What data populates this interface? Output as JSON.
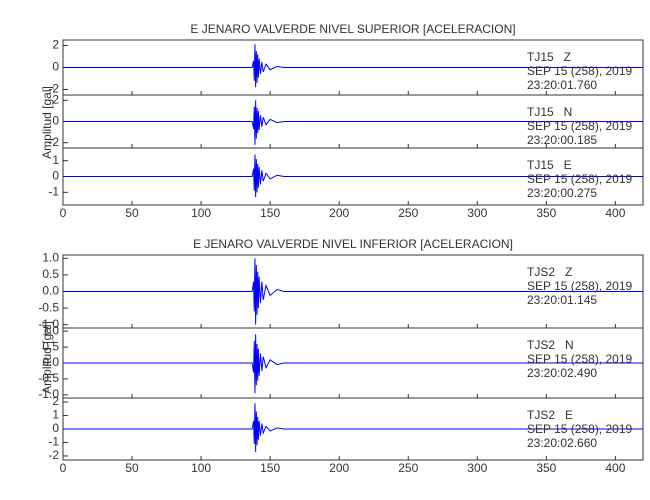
{
  "chart_data": [
    {
      "type": "line",
      "title": "E JENARO VALVERDE NIVEL SUPERIOR [ACELERACION]",
      "ylabel": "Amplitud [gal]",
      "xlim": [
        0,
        420
      ],
      "xticks": [
        0,
        50,
        100,
        150,
        200,
        250,
        300,
        350,
        400
      ],
      "panels": [
        {
          "ylim": [
            -2.5,
            2.5
          ],
          "yticks": [
            -2,
            0,
            2
          ],
          "color": "#0000ff",
          "annotations": [
            "TJ15   Z",
            "SEP 15 (258), 2019",
            "23:20:01.760"
          ],
          "x": [
            0,
            137,
            138,
            138.5,
            139,
            139.5,
            140,
            140.5,
            141,
            141.5,
            142,
            143,
            144,
            145,
            147,
            150,
            155,
            160,
            420
          ],
          "values": [
            0,
            0,
            0.6,
            -1.2,
            2.1,
            -1.8,
            1.5,
            -1.4,
            1.2,
            -0.9,
            0.8,
            -0.6,
            0.5,
            -0.4,
            0.3,
            -0.2,
            0.1,
            0,
            0
          ]
        },
        {
          "ylim": [
            -2.5,
            2.5
          ],
          "yticks": [
            -2,
            0,
            2
          ],
          "color": "#0000ff",
          "annotations": [
            "TJ15   N",
            "SEP 15 (258), 2019",
            "23:20:00.185"
          ],
          "x": [
            0,
            137,
            138,
            138.5,
            139,
            139.5,
            140,
            140.5,
            141,
            141.5,
            142,
            143,
            144,
            145,
            147,
            150,
            155,
            160,
            420
          ],
          "values": [
            0,
            0,
            -0.7,
            1.4,
            -2.2,
            2.0,
            -1.6,
            1.3,
            -1.1,
            1.0,
            -0.8,
            0.6,
            -0.5,
            0.4,
            -0.3,
            0.2,
            -0.1,
            0,
            0
          ]
        },
        {
          "ylim": [
            -1.8,
            1.8
          ],
          "yticks": [
            -1,
            0,
            1
          ],
          "color": "#0000ff",
          "annotations": [
            "TJ15   E",
            "SEP 15 (258), 2019",
            "23:20:00.275"
          ],
          "x": [
            0,
            137,
            138,
            138.5,
            139,
            139.5,
            140,
            140.5,
            141,
            141.5,
            142,
            143,
            144,
            145,
            147,
            150,
            155,
            160,
            420
          ],
          "values": [
            0,
            0,
            0.5,
            -0.9,
            1.4,
            -1.3,
            1.1,
            -1.0,
            0.8,
            -0.7,
            0.6,
            -0.5,
            0.4,
            -0.3,
            0.2,
            -0.15,
            0.08,
            0,
            0
          ]
        }
      ]
    },
    {
      "type": "line",
      "title": "E JENARO VALVERDE NIVEL INFERIOR [ACELERACION]",
      "ylabel": "Amplitud [gal]",
      "xlim": [
        0,
        420
      ],
      "xticks": [
        0,
        50,
        100,
        150,
        200,
        250,
        300,
        350,
        400
      ],
      "panels": [
        {
          "ylim": [
            -1.1,
            1.1
          ],
          "yticks": [
            {
              "value": -1,
              "label": "-1.0"
            },
            {
              "value": -0.5,
              "label": "-0.5"
            },
            {
              "value": 0,
              "label": "0.0"
            },
            {
              "value": 0.5,
              "label": "0.5"
            },
            {
              "value": 1,
              "label": "1.0"
            }
          ],
          "color": "#0000ff",
          "annotations": [
            "TJS2   Z",
            "SEP 15 (258), 2019",
            "23:20:01.145"
          ],
          "x": [
            0,
            137,
            138,
            138.5,
            139,
            139.5,
            140,
            140.5,
            141,
            141.5,
            142,
            143,
            144,
            145,
            147,
            150,
            155,
            160,
            420
          ],
          "values": [
            0,
            0,
            0.3,
            -0.6,
            1.0,
            -1.0,
            0.8,
            -0.7,
            0.6,
            -0.5,
            0.45,
            -0.35,
            0.3,
            -0.25,
            0.18,
            -0.12,
            0.06,
            0,
            0
          ]
        },
        {
          "ylim": [
            -1.1,
            1.1
          ],
          "yticks": [
            {
              "value": -1,
              "label": "-1.0"
            },
            {
              "value": -0.5,
              "label": "-0.5"
            },
            {
              "value": 0,
              "label": "0.0"
            },
            {
              "value": 0.5,
              "label": "0.5"
            },
            {
              "value": 1,
              "label": "1.0"
            }
          ],
          "color": "#0000ff",
          "annotations": [
            "TJS2   N",
            "SEP 15 (258), 2019",
            "23:20:02.490"
          ],
          "x": [
            0,
            137,
            138,
            138.5,
            139,
            139.5,
            140,
            140.5,
            141,
            141.5,
            142,
            143,
            144,
            145,
            147,
            150,
            155,
            160,
            420
          ],
          "values": [
            0,
            0,
            -0.3,
            0.7,
            -0.95,
            0.9,
            -0.7,
            0.6,
            -0.55,
            0.45,
            -0.4,
            0.3,
            -0.25,
            0.2,
            -0.15,
            0.1,
            -0.05,
            0,
            0
          ]
        },
        {
          "ylim": [
            -2.3,
            2.3
          ],
          "yticks": [
            -2,
            -1,
            0,
            1,
            2
          ],
          "color": "#0000ff",
          "annotations": [
            "TJS2   E",
            "SEP 15 (258), 2019",
            "23:20:02.660"
          ],
          "x": [
            0,
            137,
            138,
            138.5,
            139,
            139.5,
            140,
            140.5,
            141,
            141.5,
            142,
            143,
            144,
            145,
            147,
            150,
            155,
            160,
            420
          ],
          "values": [
            0,
            0,
            0.6,
            -1.1,
            1.9,
            -1.7,
            1.3,
            -1.2,
            0.9,
            -0.8,
            0.6,
            -0.5,
            0.4,
            -0.3,
            0.2,
            -0.15,
            0.08,
            0,
            0
          ]
        }
      ]
    }
  ]
}
